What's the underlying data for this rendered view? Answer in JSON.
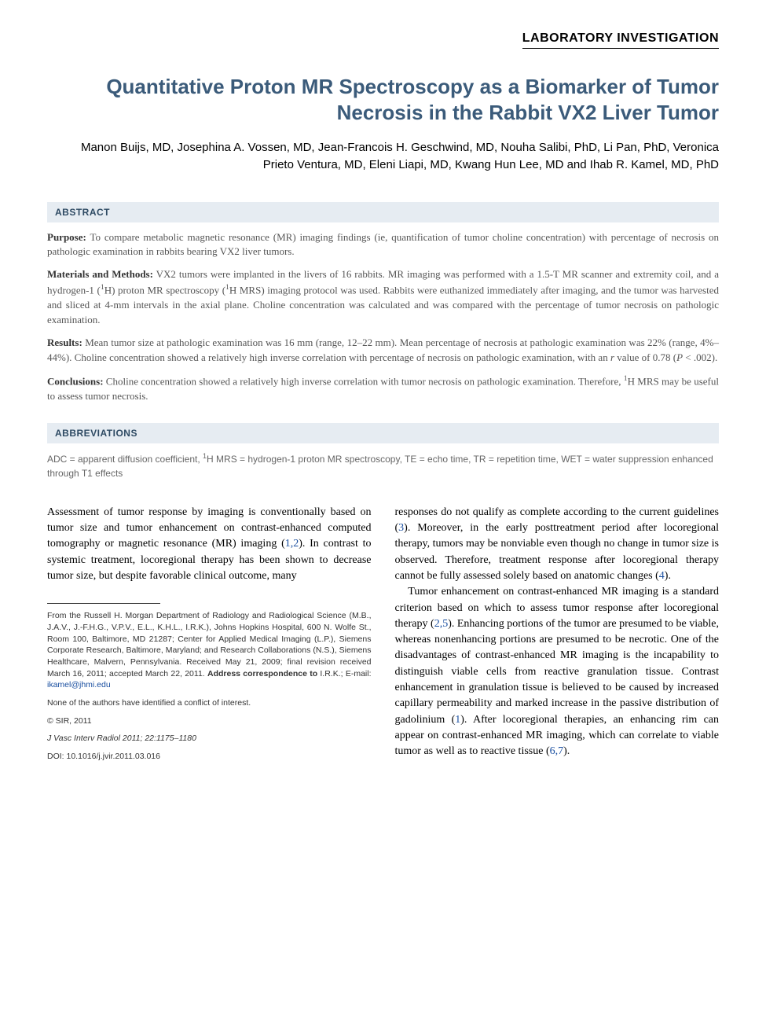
{
  "section_label": "LABORATORY INVESTIGATION",
  "title": "Quantitative Proton MR Spectroscopy as a Biomarker of Tumor Necrosis in the Rabbit VX2 Liver Tumor",
  "authors": "Manon Buijs, MD, Josephina A. Vossen, MD, Jean-Francois H. Geschwind, MD, Nouha Salibi, PhD, Li Pan, PhD, Veronica Prieto Ventura, MD, Eleni Liapi, MD, Kwang Hun Lee, MD and Ihab R. Kamel, MD, PhD",
  "abstract_heading": "ABSTRACT",
  "abstract": {
    "purpose_label": "Purpose:",
    "purpose_text": " To compare metabolic magnetic resonance (MR) imaging findings (ie, quantification of tumor choline concentration) with percentage of necrosis on pathologic examination in rabbits bearing VX2 liver tumors.",
    "methods_label": "Materials and Methods:",
    "methods_text_1": " VX2 tumors were implanted in the livers of 16 rabbits. MR imaging was performed with a 1.5-T MR scanner and extremity coil, and a hydrogen-1 (",
    "methods_sup1": "1",
    "methods_text_2": "H) proton MR spectroscopy (",
    "methods_sup2": "1",
    "methods_text_3": "H MRS) imaging protocol was used. Rabbits were euthanized immediately after imaging, and the tumor was harvested and sliced at 4-mm intervals in the axial plane. Choline concentration was calculated and was compared with the percentage of tumor necrosis on pathologic examination.",
    "results_label": "Results:",
    "results_text_1": " Mean tumor size at pathologic examination was 16 mm (range, 12–22 mm). Mean percentage of necrosis at pathologic examination was 22% (range, 4%–44%). Choline concentration showed a relatively high inverse correlation with percentage of necrosis on pathologic examination, with an ",
    "results_r": "r",
    "results_text_2": " value of 0.78 (",
    "results_P": "P",
    "results_text_3": " < .002).",
    "conclusions_label": "Conclusions:",
    "conclusions_text_1": " Choline concentration showed a relatively high inverse correlation with tumor necrosis on pathologic examination. Therefore, ",
    "conclusions_sup": "1",
    "conclusions_text_2": "H MRS may be useful to assess tumor necrosis."
  },
  "abbrev_heading": "ABBREVIATIONS",
  "abbrev_text_1": "ADC = apparent diffusion coefficient, ",
  "abbrev_sup": "1",
  "abbrev_text_2": "H MRS = hydrogen-1 proton MR spectroscopy, TE = echo time, TR = repetition time, WET = water suppression enhanced through T1 effects",
  "body": {
    "left_1a": "Assessment of tumor response by imaging is conventionally based on tumor size and tumor enhancement on contrast-enhanced computed tomography or magnetic resonance (MR) imaging (",
    "left_ref12": "1,2",
    "left_1b": "). In contrast to systemic treatment, locoregional therapy has been shown to decrease tumor size, but despite favorable clinical outcome, many",
    "right_1a": "responses do not qualify as complete according to the current guidelines (",
    "right_ref3": "3",
    "right_1b": "). Moreover, in the early posttreatment period after locoregional therapy, tumors may be nonviable even though no change in tumor size is observed. Therefore, treatment response after locoregional therapy cannot be fully assessed solely based on anatomic changes (",
    "right_ref4": "4",
    "right_1c": ").",
    "right_2a": "Tumor enhancement on contrast-enhanced MR imaging is a standard criterion based on which to assess tumor response after locoregional therapy (",
    "right_ref25": "2,5",
    "right_2b": "). Enhancing portions of the tumor are presumed to be viable, whereas nonenhancing portions are presumed to be necrotic. One of the disadvantages of contrast-enhanced MR imaging is the incapability to distinguish viable cells from reactive granulation tissue. Contrast enhancement in granulation tissue is believed to be caused by increased capillary permeability and marked increase in the passive distribution of gadolinium (",
    "right_ref1": "1",
    "right_2c": "). After locoregional therapies, an enhancing rim can appear on contrast-enhanced MR imaging, which can correlate to viable tumor as well as to reactive tissue (",
    "right_ref67": "6,7",
    "right_2d": ")."
  },
  "footnotes": {
    "affil_1": "From the Russell H. Morgan Department of Radiology and Radiological Science (M.B., J.A.V., J.-F.H.G., V.P.V., E.L., K.H.L., I.R.K.), Johns Hopkins Hospital, 600 N. Wolfe St., Room 100, Baltimore, MD 21287; Center for Applied Medical Imaging (L.P.), Siemens Corporate Research, Baltimore, Maryland; and Research Collaborations (N.S.), Siemens Healthcare, Malvern, Pennsylvania. Received May 21, 2009; final revision received March 16, 2011; accepted March 22, 2011. ",
    "affil_2": "Address correspondence to",
    "affil_3": " I.R.K.; E-mail: ",
    "email": "ikamel@jhmi.edu",
    "coi": "None of the authors have identified a conflict of interest.",
    "copyright": "© SIR, 2011",
    "citation": "J Vasc Interv Radiol 2011; 22:1175–1180",
    "doi": "DOI: 10.1016/j.jvir.2011.03.016"
  },
  "colors": {
    "title": "#3b5b7a",
    "bar_bg": "#e6ecf2",
    "bar_text": "#2e4a63",
    "link": "#1a4fa0",
    "abstract_text": "#555555"
  }
}
